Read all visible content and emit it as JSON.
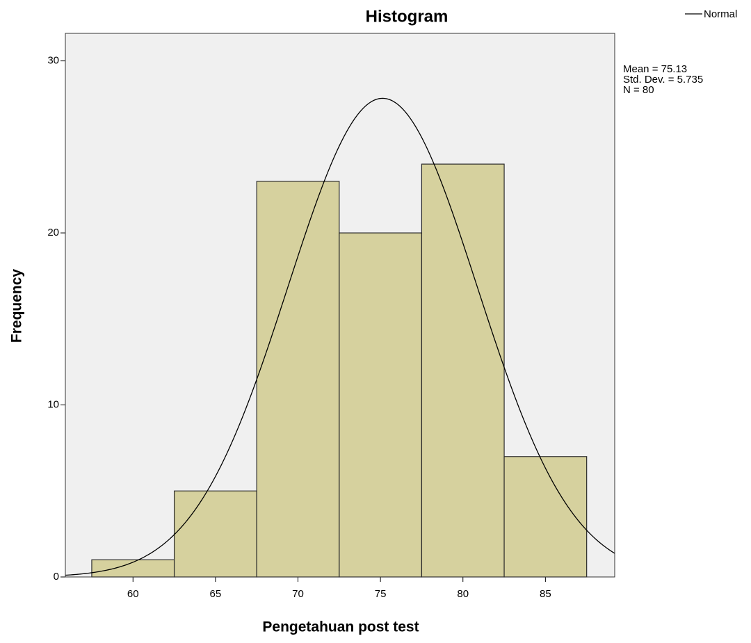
{
  "chart_data": {
    "type": "histogram",
    "title": "Histogram",
    "xlabel": "Pengetahuan post test",
    "ylabel": "Frequency",
    "bins": [
      57.5,
      62.5,
      67.5,
      72.5,
      77.5,
      82.5,
      87.5
    ],
    "values": [
      1,
      5,
      23,
      20,
      24,
      7
    ],
    "color": "#d6d19e",
    "xlim": [
      55.9,
      89.2
    ],
    "xticks": [
      60,
      65,
      70,
      75,
      80,
      85
    ],
    "ylim": [
      0,
      31.6
    ],
    "yticks": [
      0,
      10,
      20,
      30
    ],
    "curve": {
      "name": "Normal",
      "color": "#000000"
    },
    "stats": [
      {
        "value": 75.13,
        "label": "Mean = 75.13"
      },
      {
        "value": 5.735,
        "label": "Std. Dev. = 5.735"
      },
      {
        "value": 80,
        "label": "N = 80"
      }
    ],
    "legend": "top-right"
  }
}
